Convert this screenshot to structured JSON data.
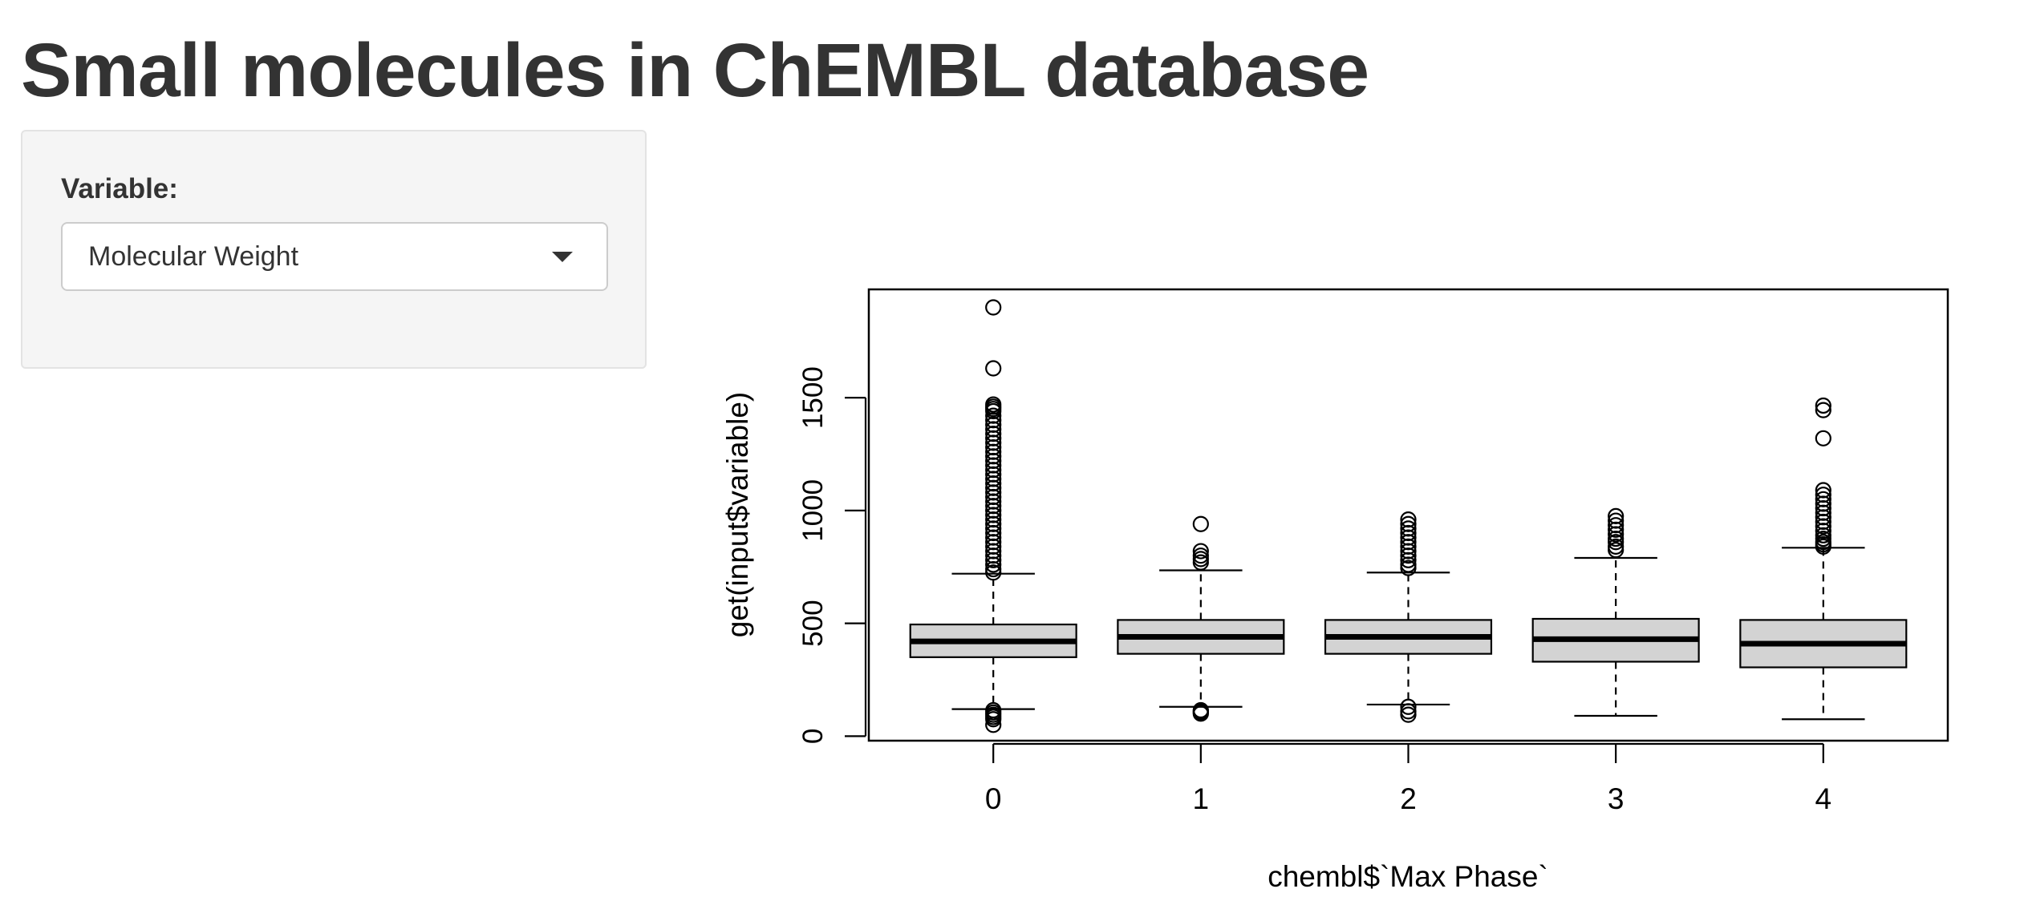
{
  "page": {
    "title": "Small molecules in ChEMBL database"
  },
  "sidebar": {
    "variable_label": "Variable:",
    "variable_select": {
      "selected": "Molecular Weight"
    }
  },
  "chart_data": {
    "type": "boxplot",
    "title": "",
    "xlabel": "chembl$`Max Phase`",
    "ylabel": "get(input$variable)",
    "categories": [
      "0",
      "1",
      "2",
      "3",
      "4"
    ],
    "ylim": [
      -20,
      1980
    ],
    "yticks": [
      0,
      500,
      1000,
      1500
    ],
    "ytick_labels": [
      "0",
      "500",
      "1000",
      "1500"
    ],
    "grid": false,
    "legend": "none",
    "box_fill": "#d3d3d3",
    "boxes": [
      {
        "category": "0",
        "lower_whisker": 120,
        "q1": 350,
        "median": 420,
        "q3": 495,
        "upper_whisker": 720,
        "outliers": [
          1900,
          1630,
          1470,
          1460,
          1450,
          1440,
          1420,
          1400,
          1380,
          1360,
          1340,
          1320,
          1300,
          1280,
          1260,
          1240,
          1220,
          1200,
          1180,
          1160,
          1140,
          1120,
          1100,
          1080,
          1060,
          1040,
          1020,
          1000,
          980,
          960,
          940,
          920,
          900,
          880,
          860,
          840,
          820,
          800,
          780,
          760,
          740,
          725,
          115,
          105,
          95,
          85,
          75,
          50
        ]
      },
      {
        "category": "1",
        "lower_whisker": 130,
        "q1": 365,
        "median": 440,
        "q3": 515,
        "upper_whisker": 735,
        "outliers": [
          940,
          820,
          800,
          785,
          770,
          115,
          110,
          105,
          100
        ]
      },
      {
        "category": "2",
        "lower_whisker": 140,
        "q1": 365,
        "median": 440,
        "q3": 515,
        "upper_whisker": 725,
        "outliers": [
          960,
          940,
          920,
          900,
          880,
          860,
          840,
          820,
          800,
          780,
          760,
          745,
          130,
          110,
          95
        ]
      },
      {
        "category": "3",
        "lower_whisker": 90,
        "q1": 330,
        "median": 430,
        "q3": 520,
        "upper_whisker": 790,
        "outliers": [
          975,
          955,
          935,
          915,
          895,
          875,
          860,
          840,
          825
        ]
      },
      {
        "category": "4",
        "lower_whisker": 75,
        "q1": 305,
        "median": 410,
        "q3": 515,
        "upper_whisker": 835,
        "outliers": [
          1465,
          1445,
          1320,
          1090,
          1070,
          1050,
          1030,
          1010,
          990,
          970,
          950,
          930,
          910,
          890,
          875,
          860,
          850,
          840
        ]
      }
    ]
  }
}
